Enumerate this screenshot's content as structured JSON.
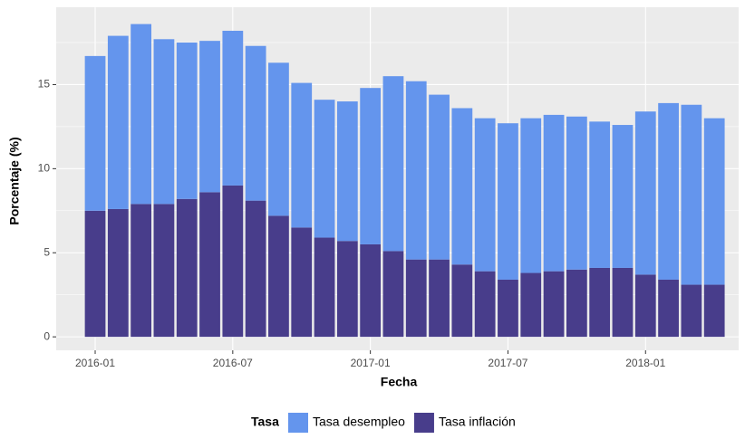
{
  "chart_data": {
    "type": "bar",
    "stacked": true,
    "x_label": "Fecha",
    "y_label": "Porcentaje (%)",
    "legend_title": "Tasa",
    "legend_position": "bottom",
    "grid": true,
    "x": [
      "2016-01",
      "2016-02",
      "2016-03",
      "2016-04",
      "2016-05",
      "2016-06",
      "2016-07",
      "2016-08",
      "2016-09",
      "2016-10",
      "2016-11",
      "2016-12",
      "2017-01",
      "2017-02",
      "2017-03",
      "2017-04",
      "2017-05",
      "2017-06",
      "2017-07",
      "2017-08",
      "2017-09",
      "2017-10",
      "2017-11",
      "2017-12",
      "2018-01",
      "2018-02",
      "2018-03",
      "2018-04"
    ],
    "xticks": [
      "2016-01",
      "2016-07",
      "2017-01",
      "2017-07",
      "2018-01"
    ],
    "ylim": [
      -0.8,
      19.6
    ],
    "yticks": [
      0,
      5,
      10,
      15
    ],
    "series": [
      {
        "name": "Tasa desempleo",
        "color": "#6495ed",
        "values": [
          9.2,
          10.3,
          10.7,
          9.8,
          9.3,
          9.0,
          9.2,
          9.2,
          9.1,
          8.6,
          8.2,
          8.3,
          9.3,
          10.4,
          10.6,
          9.8,
          9.3,
          9.1,
          9.3,
          9.2,
          9.3,
          9.1,
          8.7,
          8.5,
          9.7,
          10.5,
          10.7,
          9.9
        ]
      },
      {
        "name": "Tasa inflación",
        "color": "#483d8b",
        "values": [
          7.5,
          7.6,
          7.9,
          7.9,
          8.2,
          8.6,
          9.0,
          8.1,
          7.2,
          6.5,
          5.9,
          5.7,
          5.5,
          5.1,
          4.6,
          4.6,
          4.3,
          3.9,
          3.4,
          3.8,
          3.9,
          4.0,
          4.1,
          4.1,
          3.7,
          3.4,
          3.1,
          3.1
        ]
      }
    ]
  }
}
